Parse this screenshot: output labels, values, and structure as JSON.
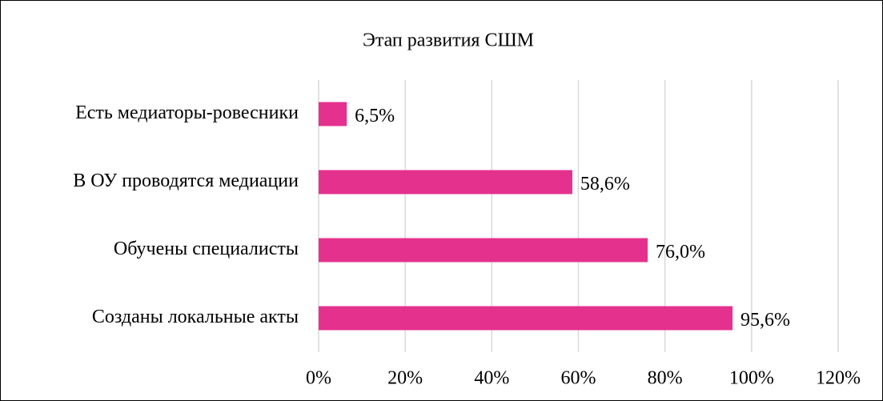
{
  "chart_data": {
    "type": "bar",
    "orientation": "horizontal",
    "title": "Этап развития СШМ",
    "categories": [
      "Есть медиаторы-ровесники",
      "В ОУ проводятся медиации",
      "Обучены специалисты",
      "Созданы локальные акты"
    ],
    "values": [
      6.5,
      58.6,
      76.0,
      95.6
    ],
    "value_labels": [
      "6,5%",
      "58,6%",
      "76,0%",
      "95,6%"
    ],
    "color": "#e4318d",
    "xlim": [
      0,
      120
    ],
    "xticks": [
      {
        "value": 0,
        "label": "0%"
      },
      {
        "value": 20,
        "label": "20%"
      },
      {
        "value": 40,
        "label": "40%"
      },
      {
        "value": 60,
        "label": "60%"
      },
      {
        "value": 80,
        "label": "80%"
      },
      {
        "value": 100,
        "label": "100%"
      },
      {
        "value": 120,
        "label": "120%"
      }
    ],
    "grid": true
  }
}
